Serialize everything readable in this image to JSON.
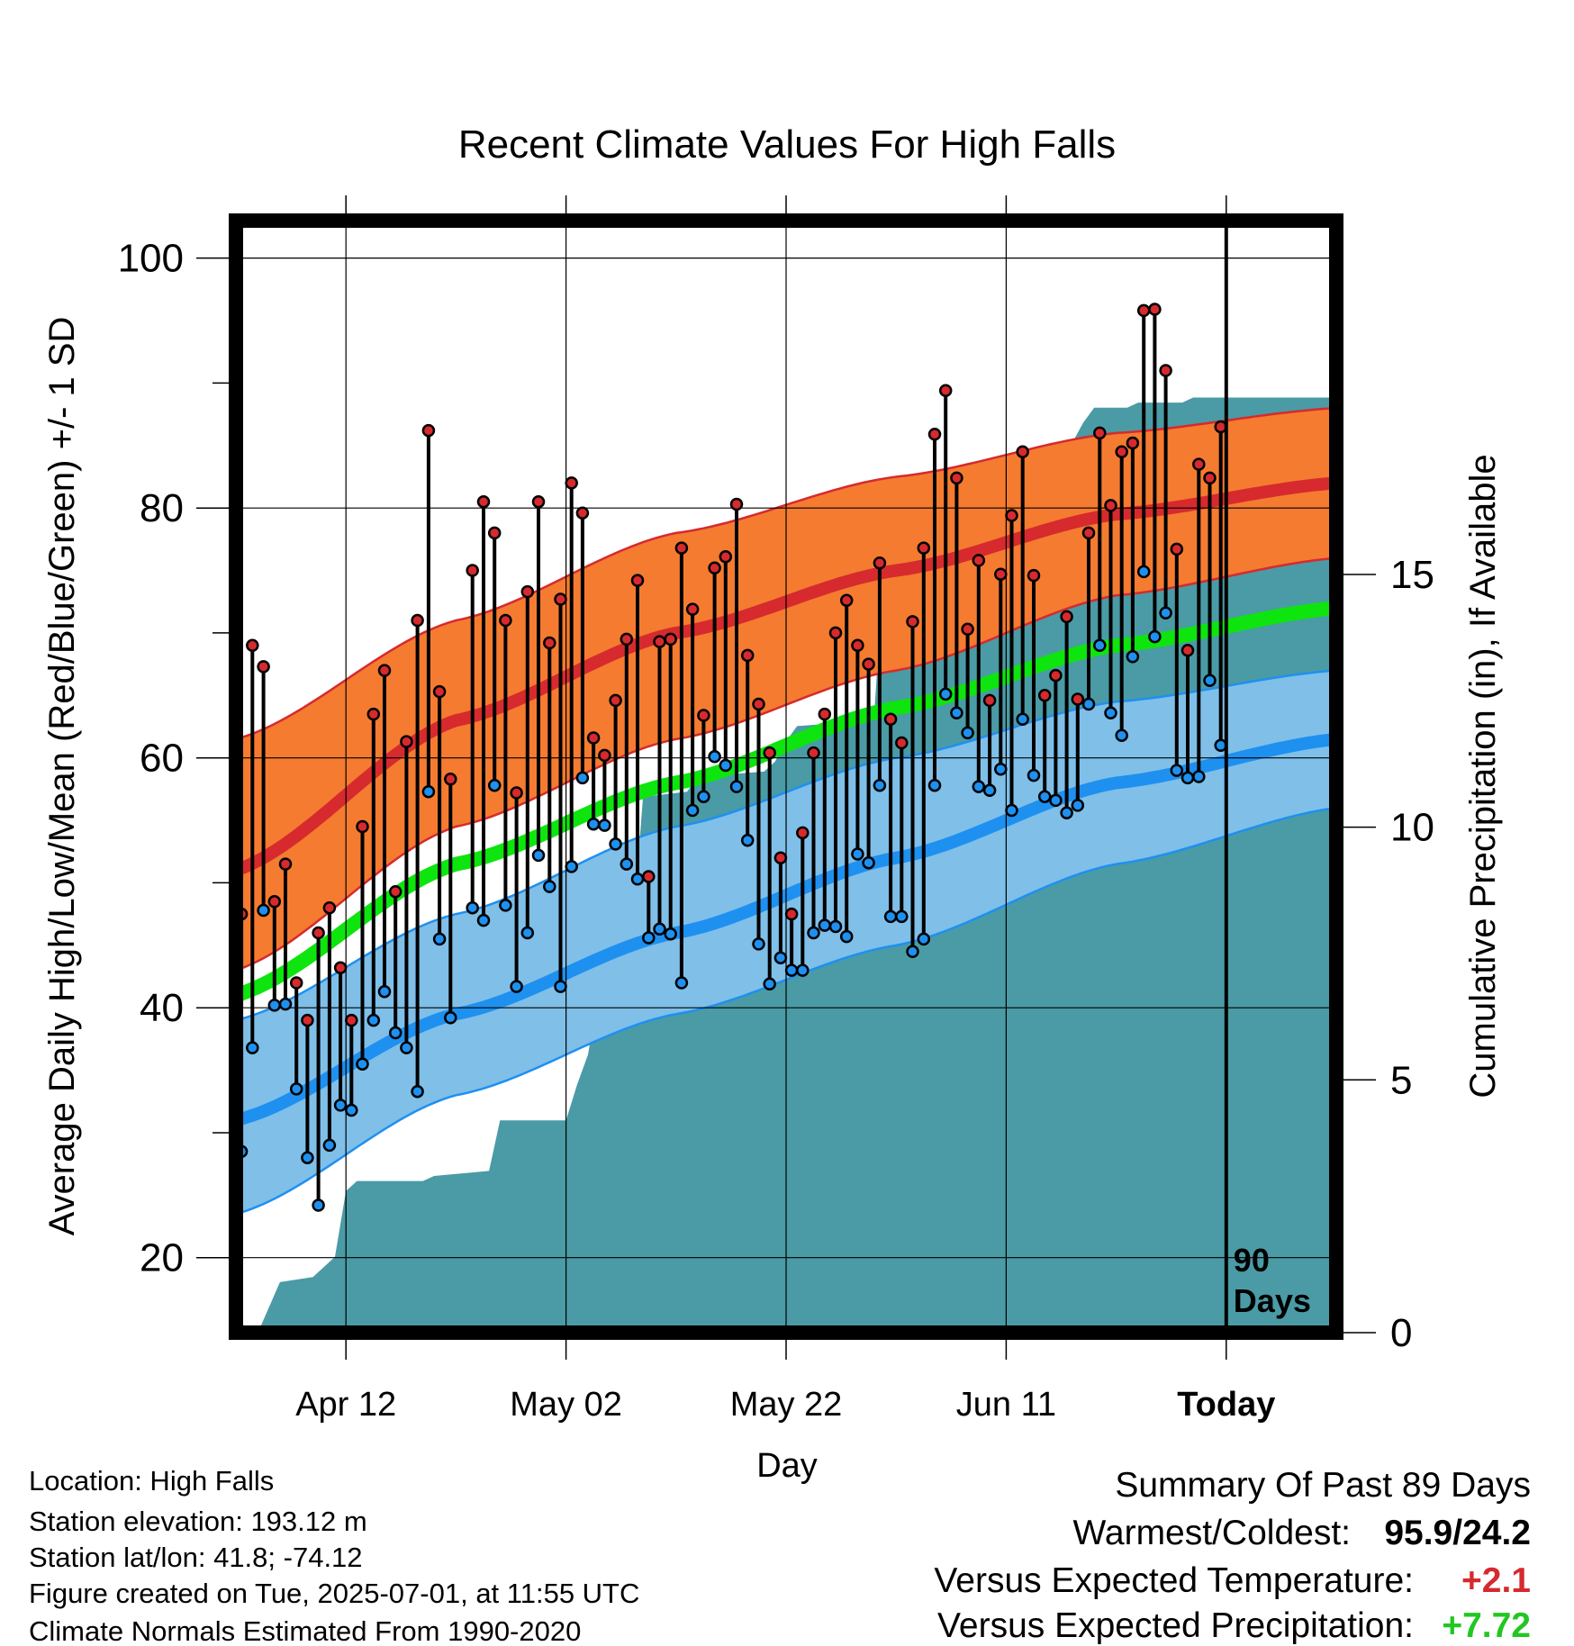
{
  "chart_data": {
    "type": "line",
    "title": "Recent Climate Values For High Falls",
    "xlabel": "Day",
    "ylabel_left": "Average Daily High/Low/Mean (Red/Blue/Green) +/- 1 SD",
    "ylabel_right": "Cumulative Precipitation (in), If Available",
    "ylim_left": [
      14,
      103
    ],
    "ylim_right": [
      0,
      22
    ],
    "yticks_left": [
      20,
      40,
      60,
      80,
      100
    ],
    "yticks_right": [
      0,
      5,
      10,
      15
    ],
    "xlim_days": [
      1,
      101
    ],
    "xticks": [
      {
        "day": 11,
        "label": "Apr 12"
      },
      {
        "day": 31,
        "label": "May 02"
      },
      {
        "day": 51,
        "label": "May 22"
      },
      {
        "day": 71,
        "label": "Jun 11"
      },
      {
        "day": 91,
        "label": "Today"
      }
    ],
    "today_day": 91,
    "today_annotation": [
      "90",
      "Days"
    ],
    "normals": {
      "high_mean": [
        [
          1,
          51
        ],
        [
          21,
          63
        ],
        [
          41,
          70
        ],
        [
          61,
          75
        ],
        [
          81,
          79.5
        ],
        [
          101,
          82
        ]
      ],
      "high_upper": [
        [
          1,
          61.5
        ],
        [
          21,
          71
        ],
        [
          41,
          78
        ],
        [
          61,
          82.5
        ],
        [
          81,
          86
        ],
        [
          101,
          88
        ]
      ],
      "high_lower": [
        [
          1,
          43
        ],
        [
          21,
          54.5
        ],
        [
          41,
          61.5
        ],
        [
          61,
          67
        ],
        [
          81,
          73
        ],
        [
          101,
          76
        ]
      ],
      "mean": [
        [
          1,
          41
        ],
        [
          21,
          51.5
        ],
        [
          41,
          58
        ],
        [
          61,
          64
        ],
        [
          81,
          69
        ],
        [
          101,
          72
        ]
      ],
      "low_mean": [
        [
          1,
          31
        ],
        [
          21,
          39.5
        ],
        [
          41,
          46
        ],
        [
          61,
          52
        ],
        [
          81,
          58
        ],
        [
          101,
          61.5
        ]
      ],
      "low_upper": [
        [
          1,
          39
        ],
        [
          21,
          47.5
        ],
        [
          41,
          54.5
        ],
        [
          61,
          60
        ],
        [
          81,
          64.5
        ],
        [
          101,
          67
        ]
      ],
      "low_lower": [
        [
          1,
          23.5
        ],
        [
          21,
          33
        ],
        [
          41,
          39.5
        ],
        [
          61,
          45
        ],
        [
          81,
          51.5
        ],
        [
          101,
          56
        ]
      ]
    },
    "daily": [
      [
        47.5,
        28.5
      ],
      [
        69,
        36.8
      ],
      [
        67.3,
        47.8
      ],
      [
        48.5,
        40.2
      ],
      [
        51.5,
        40.3
      ],
      [
        42,
        33.5
      ],
      [
        39,
        28
      ],
      [
        46,
        24.2
      ],
      [
        48,
        29
      ],
      [
        43.2,
        32.2
      ],
      [
        39,
        31.8
      ],
      [
        54.5,
        35.5
      ],
      [
        63.5,
        39
      ],
      [
        67,
        41.3
      ],
      [
        49.3,
        38
      ],
      [
        61.3,
        36.8
      ],
      [
        71,
        33.3
      ],
      [
        86.2,
        57.3
      ],
      [
        65.3,
        45.5
      ],
      [
        58.3,
        39.2
      ],
      [
        null,
        null
      ],
      [
        75,
        48
      ],
      [
        80.5,
        47
      ],
      [
        78,
        57.8
      ],
      [
        71,
        48.2
      ],
      [
        57.2,
        41.7
      ],
      [
        73.3,
        46
      ],
      [
        80.5,
        52.2
      ],
      [
        69.2,
        49.7
      ],
      [
        72.7,
        41.7
      ],
      [
        82,
        51.3
      ],
      [
        79.6,
        58.4
      ],
      [
        61.6,
        54.7
      ],
      [
        60.2,
        54.6
      ],
      [
        64.6,
        53.1
      ],
      [
        69.5,
        51.5
      ],
      [
        74.2,
        50.3
      ],
      [
        50.5,
        45.6
      ],
      [
        69.3,
        46.3
      ],
      [
        69.5,
        45.9
      ],
      [
        76.8,
        42
      ],
      [
        71.9,
        55.8
      ],
      [
        63.4,
        56.9
      ],
      [
        75.2,
        60.1
      ],
      [
        76.1,
        59.4
      ],
      [
        80.3,
        57.7
      ],
      [
        68.2,
        53.4
      ],
      [
        64.3,
        45.1
      ],
      [
        60.4,
        41.9
      ],
      [
        52,
        44
      ],
      [
        47.5,
        43
      ],
      [
        54,
        43
      ],
      [
        60.4,
        46
      ],
      [
        63.5,
        46.6
      ],
      [
        70,
        46.5
      ],
      [
        72.6,
        45.7
      ],
      [
        69,
        52.3
      ],
      [
        67.5,
        51.6
      ],
      [
        75.6,
        57.8
      ],
      [
        63.1,
        47.3
      ],
      [
        61.2,
        47.3
      ],
      [
        70.9,
        44.5
      ],
      [
        76.8,
        45.5
      ],
      [
        85.9,
        57.8
      ],
      [
        89.4,
        65.1
      ],
      [
        82.4,
        63.6
      ],
      [
        70.3,
        62
      ],
      [
        75.8,
        57.7
      ],
      [
        64.6,
        57.4
      ],
      [
        74.7,
        59.1
      ],
      [
        79.4,
        55.8
      ],
      [
        84.5,
        63.1
      ],
      [
        74.6,
        58.6
      ],
      [
        65,
        56.9
      ],
      [
        66.6,
        56.6
      ],
      [
        71.3,
        55.6
      ],
      [
        64.7,
        56.2
      ],
      [
        78,
        64.3
      ],
      [
        86,
        69
      ],
      [
        80.2,
        63.6
      ],
      [
        84.5,
        61.8
      ],
      [
        85.2,
        68.1
      ],
      [
        95.8,
        74.9
      ],
      [
        95.9,
        69.7
      ],
      [
        91,
        71.6
      ],
      [
        76.7,
        59
      ],
      [
        68.6,
        58.4
      ],
      [
        83.5,
        58.5
      ],
      [
        82.4,
        66.2
      ],
      [
        86.5,
        61
      ]
    ],
    "precip_cumulative": [
      [
        1,
        0
      ],
      [
        2,
        0
      ],
      [
        3,
        0
      ],
      [
        4,
        0.5
      ],
      [
        5,
        1.0
      ],
      [
        8,
        1.1
      ],
      [
        10,
        1.5
      ],
      [
        11,
        2.8
      ],
      [
        12,
        3.0
      ],
      [
        18,
        3.0
      ],
      [
        19,
        3.1
      ],
      [
        24,
        3.2
      ],
      [
        25,
        4.2
      ],
      [
        31,
        4.2
      ],
      [
        32,
        4.9
      ],
      [
        33,
        5.5
      ],
      [
        34,
        6.8
      ],
      [
        35,
        7.4
      ],
      [
        36,
        7.4
      ],
      [
        37,
        7.8
      ],
      [
        38,
        10.6
      ],
      [
        42,
        10.7
      ],
      [
        43,
        11.0
      ],
      [
        49,
        11.1
      ],
      [
        50,
        11.3
      ],
      [
        51,
        11.7
      ],
      [
        52,
        12.0
      ],
      [
        58,
        12.1
      ],
      [
        59,
        12.2
      ],
      [
        60,
        15.6
      ],
      [
        66,
        15.6
      ],
      [
        67,
        16.0
      ],
      [
        68,
        16.2
      ],
      [
        69,
        16.3
      ],
      [
        70,
        16.6
      ],
      [
        73,
        16.7
      ],
      [
        74,
        16.8
      ],
      [
        75,
        16.9
      ],
      [
        76,
        17.0
      ],
      [
        77,
        17.6
      ],
      [
        78,
        18.0
      ],
      [
        79,
        18.3
      ],
      [
        82,
        18.3
      ],
      [
        83,
        18.4
      ],
      [
        87,
        18.4
      ],
      [
        88,
        18.5
      ],
      [
        91,
        18.5
      ],
      [
        101,
        18.5
      ]
    ],
    "colors": {
      "high_band": "#f47b30",
      "high_mean": "#d62a2e",
      "high_edge": "#d62a2e",
      "mean": "#0ee40e",
      "low_band": "#7fbfe8",
      "low_mean": "#1e90f0",
      "low_edge": "#1e90f0",
      "precip": "#4a9ba5",
      "high_dot": "#d62a2e",
      "low_dot": "#1e90f0",
      "positive_temp": "#d62a2e",
      "positive_precip": "#22c722"
    }
  },
  "info": {
    "location": "Location: High Falls",
    "elevation": "Station elevation: 193.12 m",
    "latlon": "Station lat/lon: 41.8; -74.12",
    "created": "Figure created on Tue, 2025-07-01, at 11:55 UTC",
    "normals": "Climate Normals Estimated From 1990-2020"
  },
  "summary": {
    "heading": "Summary Of Past 89 Days",
    "warm_cold_label": "Warmest/Coldest:",
    "warm_cold_value": "95.9/24.2",
    "temp_label": "Versus Expected Temperature:",
    "temp_value": "+2.1",
    "precip_label": "Versus Expected Precipitation:",
    "precip_value": "+7.72"
  }
}
